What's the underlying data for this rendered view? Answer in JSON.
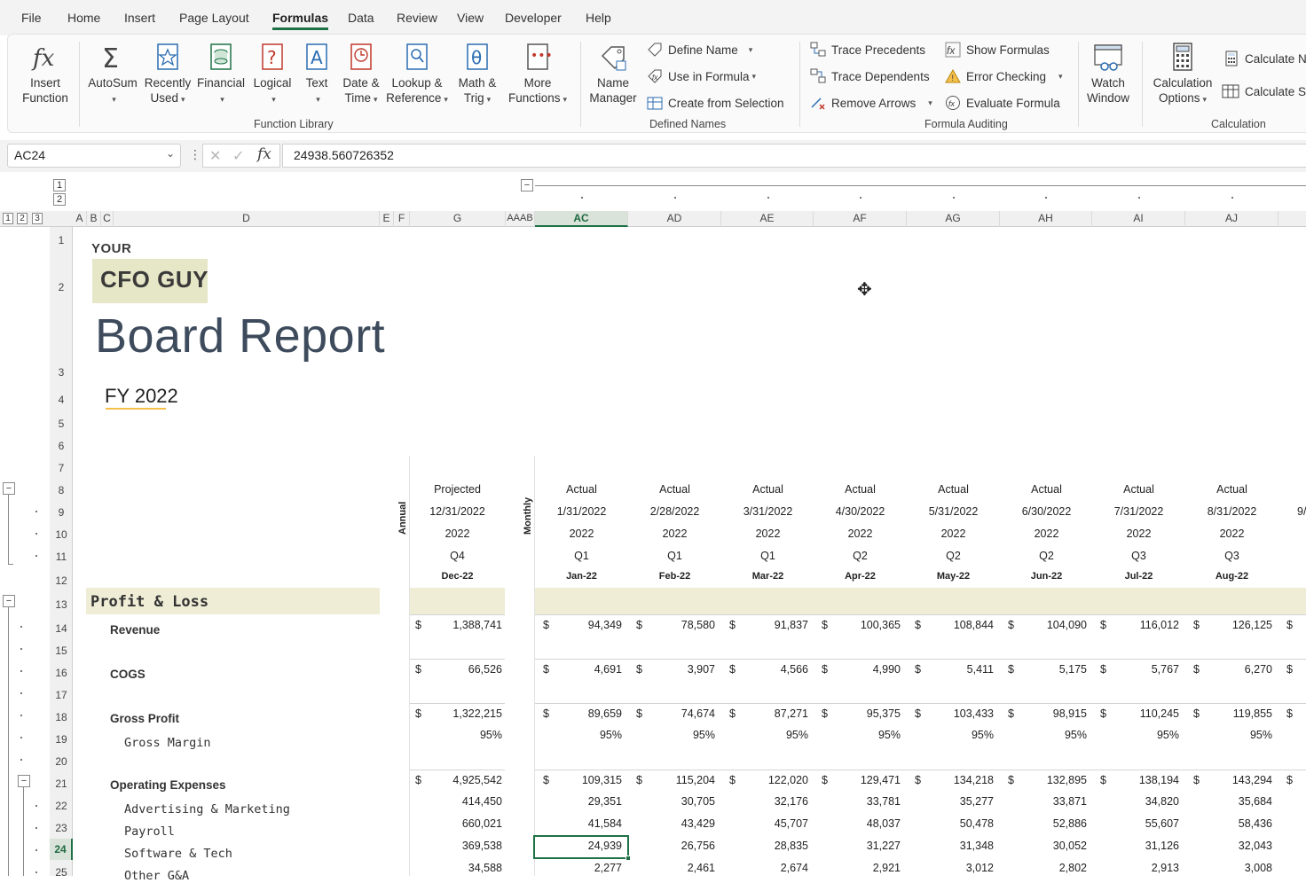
{
  "ribbon": {
    "tabs": [
      "File",
      "Home",
      "Insert",
      "Page Layout",
      "Formulas",
      "Data",
      "Review",
      "View",
      "Developer",
      "Help"
    ],
    "active_tab": "Formulas",
    "function_library": {
      "group_label": "Function Library",
      "insert_function": "Insert\nFunction",
      "autosum": "AutoSum",
      "recently_used": "Recently\nUsed",
      "financial": "Financial",
      "logical": "Logical",
      "text": "Text",
      "date_time": "Date &\nTime",
      "lookup_reference": "Lookup &\nReference",
      "math_trig": "Math &\nTrig",
      "more_functions": "More\nFunctions"
    },
    "defined_names": {
      "group_label": "Defined Names",
      "name_manager": "Name\nManager",
      "define_name": "Define Name",
      "use_in_formula": "Use in Formula",
      "create_from_selection": "Create from Selection"
    },
    "formula_auditing": {
      "group_label": "Formula Auditing",
      "trace_precedents": "Trace Precedents",
      "trace_dependents": "Trace Dependents",
      "remove_arrows": "Remove Arrows",
      "show_formulas": "Show Formulas",
      "error_checking": "Error Checking",
      "evaluate_formula": "Evaluate Formula",
      "watch_window": "Watch\nWindow"
    },
    "calculation": {
      "group_label": "Calculation",
      "calculation_options": "Calculation\nOptions",
      "calculate_now": "Calculate No",
      "calculate_sheet": "Calculate Sh"
    }
  },
  "formula_bar": {
    "name_box": "AC24",
    "fx": "fx",
    "value": "24938.560726352"
  },
  "outline_levels": [
    "1",
    "2",
    "3"
  ],
  "outline_rows": [
    "1",
    "2"
  ],
  "columns": {
    "left": [
      "A",
      "B",
      "C",
      "D",
      "E",
      "F",
      "G",
      "AAAB"
    ],
    "months": [
      "AC",
      "AD",
      "AE",
      "AF",
      "AG",
      "AH",
      "AI",
      "AJ"
    ]
  },
  "rows": [
    "1",
    "2",
    "3",
    "4",
    "5",
    "6",
    "7",
    "8",
    "9",
    "10",
    "11",
    "12",
    "13",
    "14",
    "15",
    "16",
    "17",
    "18",
    "19",
    "20",
    "21",
    "22",
    "23",
    "24",
    "25"
  ],
  "selected_cell": {
    "column": "AC",
    "row": "24"
  },
  "header": {
    "brand_top": "YOUR",
    "brand_main": "CFO GUY",
    "title": "Board Report",
    "subtitle": "FY 2022"
  },
  "side_labels": {
    "annual": "Annual",
    "monthly": "Monthly"
  },
  "annual_col": {
    "type": "Projected",
    "date": "12/31/2022",
    "year": "2022",
    "quarter": "Q4",
    "period": "Dec-22"
  },
  "month_cols": [
    {
      "type": "Actual",
      "date": "1/31/2022",
      "year": "2022",
      "quarter": "Q1",
      "period": "Jan-22"
    },
    {
      "type": "Actual",
      "date": "2/28/2022",
      "year": "2022",
      "quarter": "Q1",
      "period": "Feb-22"
    },
    {
      "type": "Actual",
      "date": "3/31/2022",
      "year": "2022",
      "quarter": "Q1",
      "period": "Mar-22"
    },
    {
      "type": "Actual",
      "date": "4/30/2022",
      "year": "2022",
      "quarter": "Q2",
      "period": "Apr-22"
    },
    {
      "type": "Actual",
      "date": "5/31/2022",
      "year": "2022",
      "quarter": "Q2",
      "period": "May-22"
    },
    {
      "type": "Actual",
      "date": "6/30/2022",
      "year": "2022",
      "quarter": "Q2",
      "period": "Jun-22"
    },
    {
      "type": "Actual",
      "date": "7/31/2022",
      "year": "2022",
      "quarter": "Q3",
      "period": "Jul-22"
    },
    {
      "type": "Actual",
      "date": "8/31/2022",
      "year": "2022",
      "quarter": "Q3",
      "period": "Aug-22"
    }
  ],
  "next_col_date_fragment": "9/",
  "section_title": "Profit & Loss",
  "currency_symbol": "$",
  "pl_rows": [
    {
      "row": "14",
      "label": "Revenue",
      "style": "bold",
      "dollar": true,
      "annual": "1,388,741",
      "months": [
        "94,349",
        "78,580",
        "91,837",
        "100,365",
        "108,844",
        "104,090",
        "116,012",
        "126,125"
      ]
    },
    {
      "row": "16",
      "label": "COGS",
      "style": "bold",
      "dollar": true,
      "annual": "66,526",
      "months": [
        "4,691",
        "3,907",
        "4,566",
        "4,990",
        "5,411",
        "5,175",
        "5,767",
        "6,270"
      ]
    },
    {
      "row": "18",
      "label": "Gross Profit",
      "style": "bold",
      "dollar": true,
      "annual": "1,322,215",
      "months": [
        "89,659",
        "74,674",
        "87,271",
        "95,375",
        "103,433",
        "98,915",
        "110,245",
        "119,855"
      ]
    },
    {
      "row": "19",
      "label": "Gross Margin",
      "style": "mono",
      "dollar": false,
      "annual": "95%",
      "months": [
        "95%",
        "95%",
        "95%",
        "95%",
        "95%",
        "95%",
        "95%",
        "95%"
      ]
    },
    {
      "row": "21",
      "label": "Operating Expenses",
      "style": "bold",
      "dollar": true,
      "annual": "4,925,542",
      "months": [
        "109,315",
        "115,204",
        "122,020",
        "129,471",
        "134,218",
        "132,895",
        "138,194",
        "143,294"
      ]
    },
    {
      "row": "22",
      "label": "Advertising & Marketing",
      "style": "mono",
      "dollar": false,
      "annual": "414,450",
      "months": [
        "29,351",
        "30,705",
        "32,176",
        "33,781",
        "35,277",
        "33,871",
        "34,820",
        "35,684"
      ]
    },
    {
      "row": "23",
      "label": "Payroll",
      "style": "mono",
      "dollar": false,
      "annual": "660,021",
      "months": [
        "41,584",
        "43,429",
        "45,707",
        "48,037",
        "50,478",
        "52,886",
        "55,607",
        "58,436"
      ]
    },
    {
      "row": "24",
      "label": "Software & Tech",
      "style": "mono",
      "dollar": false,
      "annual": "369,538",
      "months": [
        "24,939",
        "26,756",
        "28,835",
        "31,227",
        "31,348",
        "30,052",
        "31,126",
        "32,043"
      ]
    },
    {
      "row": "25",
      "label": "Other G&A",
      "style": "mono",
      "dollar": false,
      "annual": "34,588",
      "months": [
        "2,277",
        "2,461",
        "2,674",
        "2,921",
        "3,012",
        "2,802",
        "2,913",
        "3,008"
      ]
    }
  ],
  "colors": {
    "accent": "#1e7145",
    "band": "#efedd6",
    "brand_bg": "#e6e7c6",
    "title": "#3d4b5c"
  }
}
